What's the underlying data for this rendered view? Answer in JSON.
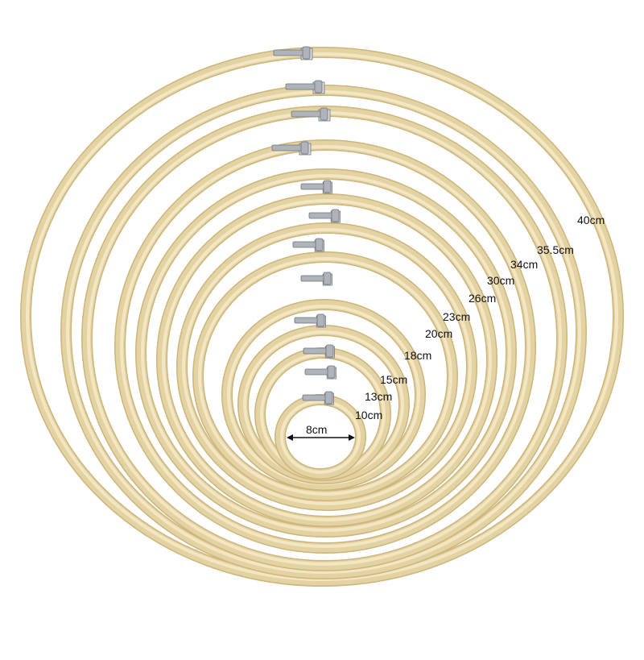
{
  "colors": {
    "wood_outer": "#e3d2a2",
    "wood_mid": "#f3e6c2",
    "wood_edge": "#cdb57c",
    "screw": "#aeb4b9",
    "screw_dark": "#6f767c",
    "background": "#ffffff",
    "label_text": "#111111"
  },
  "hoops": [
    {
      "label": "40cm"
    },
    {
      "label": "35.5cm"
    },
    {
      "label": "34cm"
    },
    {
      "label": "30cm"
    },
    {
      "label": "26cm"
    },
    {
      "label": "23cm"
    },
    {
      "label": "20cm"
    },
    {
      "label": "18cm"
    },
    {
      "label": "15cm"
    },
    {
      "label": "13cm"
    },
    {
      "label": "10cm"
    },
    {
      "label": "8cm"
    }
  ]
}
